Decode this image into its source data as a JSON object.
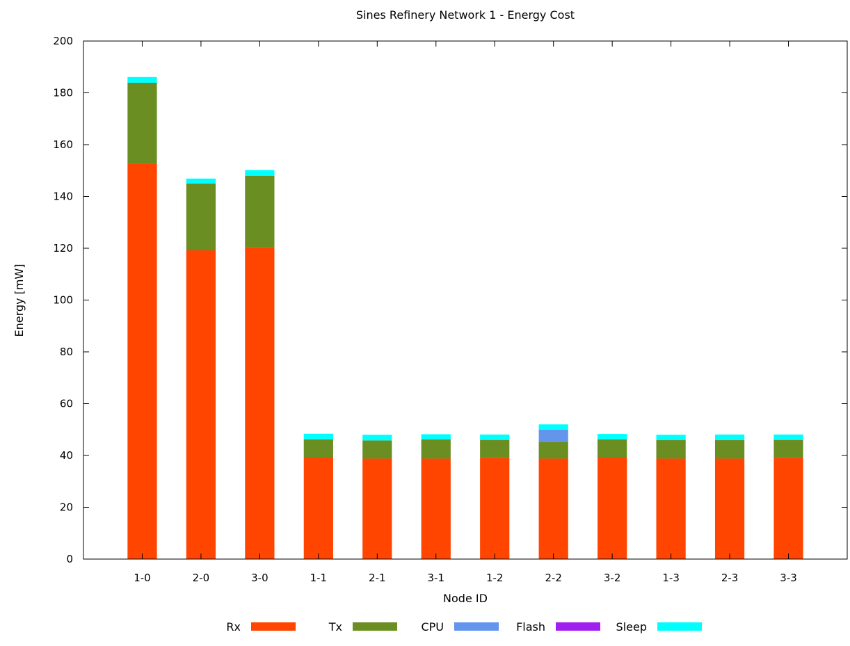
{
  "chart_data": {
    "type": "bar",
    "stacked": true,
    "title": "Sines Refinery Network 1 - Energy Cost",
    "xlabel": "Node ID",
    "ylabel": "Energy [mW]",
    "ylim": [
      0,
      200
    ],
    "yticks": [
      0,
      20,
      40,
      60,
      80,
      100,
      120,
      140,
      160,
      180,
      200
    ],
    "grid": false,
    "legend_position": "bottom",
    "categories": [
      "1-0",
      "2-0",
      "3-0",
      "1-1",
      "2-1",
      "3-1",
      "1-2",
      "2-2",
      "3-2",
      "1-3",
      "2-3",
      "3-3"
    ],
    "series": [
      {
        "name": "Rx",
        "color": "#ff4500",
        "values": [
          152.5,
          119.2,
          120.5,
          39.2,
          38.8,
          38.8,
          39.1,
          38.8,
          39.2,
          38.8,
          38.8,
          39.1
        ]
      },
      {
        "name": "Tx",
        "color": "#6b8e23",
        "values": [
          31.4,
          25.8,
          27.5,
          7.0,
          7.0,
          7.4,
          6.9,
          6.5,
          7.0,
          7.1,
          7.1,
          6.9
        ]
      },
      {
        "name": "CPU",
        "color": "#6495ed",
        "values": [
          0,
          0,
          0,
          0,
          0,
          0,
          0,
          4.7,
          0,
          0,
          0,
          0
        ]
      },
      {
        "name": "Flash",
        "color": "#a020f0",
        "values": [
          0,
          0,
          0,
          0,
          0,
          0,
          0,
          0,
          0,
          0,
          0,
          0
        ]
      },
      {
        "name": "Sleep",
        "color": "#00ffff",
        "values": [
          2.2,
          1.9,
          2.2,
          2.2,
          2.2,
          2.0,
          2.1,
          2.0,
          2.1,
          2.1,
          2.2,
          2.1
        ]
      }
    ]
  }
}
